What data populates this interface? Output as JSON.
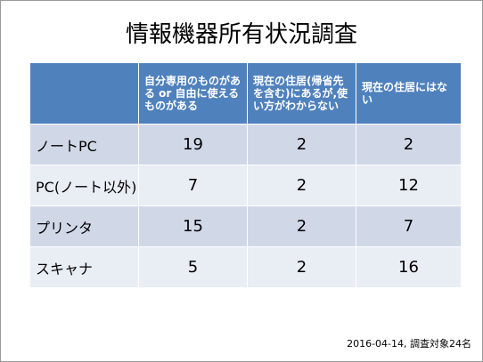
{
  "title": "情報機器所有状況調査",
  "table": {
    "headers": [
      "",
      "自分専用のものがある or 自由に使えるものがある",
      "現在の住居(帰省先を含む)にあるが,使い方がわからない",
      "現在の住居にはない"
    ],
    "rows": [
      {
        "label": "ノートPC",
        "values": [
          "19",
          "2",
          "2"
        ]
      },
      {
        "label": "PC(ノート以外)",
        "values": [
          "7",
          "2",
          "12"
        ]
      },
      {
        "label": "プリンタ",
        "values": [
          "15",
          "2",
          "7"
        ]
      },
      {
        "label": "スキャナ",
        "values": [
          "5",
          "2",
          "16"
        ]
      }
    ]
  },
  "footer": "2016-04-14,  調査対象24名",
  "colors": {
    "header": "#4f81bd",
    "row_odd": "#d0d8e8",
    "row_even": "#e9edf4"
  }
}
